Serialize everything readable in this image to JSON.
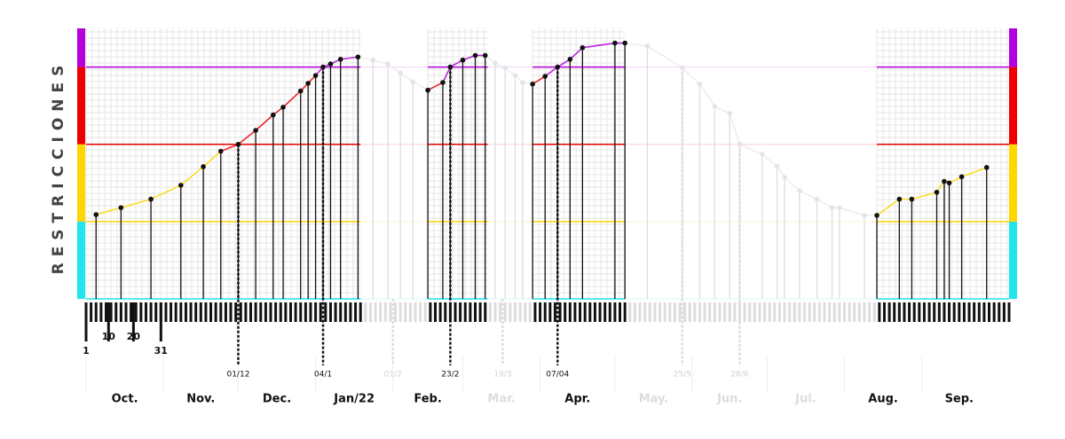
{
  "chart_data": {
    "type": "line",
    "ylabel": "RESTRICCIONES",
    "xlim": [
      0,
      370
    ],
    "ylim": [
      0,
      3.5
    ],
    "bands": [
      {
        "from": 0,
        "to": 1,
        "color": "#22e4ee"
      },
      {
        "from": 1,
        "to": 2,
        "color": "#ffd600"
      },
      {
        "from": 2,
        "to": 3,
        "color": "#ee0000"
      },
      {
        "from": 3,
        "to": 3.5,
        "color": "#b400dc"
      }
    ],
    "active_ranges": [
      [
        0,
        110
      ],
      [
        137,
        161
      ],
      [
        179,
        216
      ],
      [
        317,
        370
      ]
    ],
    "series": [
      {
        "x": [
          4,
          14,
          26,
          38,
          47,
          54,
          61,
          68,
          75,
          79,
          86,
          89,
          92,
          95,
          98,
          102,
          109,
          115,
          121,
          126,
          131,
          137,
          143,
          146,
          151,
          156,
          160,
          164,
          168,
          172,
          175,
          179,
          184,
          189,
          194,
          199,
          212,
          216,
          225,
          239,
          246,
          252,
          258,
          262,
          271,
          277,
          280,
          286,
          293,
          299,
          302,
          312,
          317,
          326,
          331,
          341,
          344,
          346,
          351,
          361
        ],
        "values": [
          1.09,
          1.18,
          1.29,
          1.47,
          1.71,
          1.91,
          2.0,
          2.18,
          2.38,
          2.48,
          2.69,
          2.79,
          2.89,
          3.0,
          3.04,
          3.1,
          3.13,
          3.09,
          3.04,
          2.92,
          2.81,
          2.7,
          2.8,
          3.0,
          3.09,
          3.15,
          3.15,
          3.05,
          2.99,
          2.89,
          2.8,
          2.78,
          2.88,
          3.0,
          3.1,
          3.25,
          3.31,
          3.31,
          3.27,
          2.99,
          2.78,
          2.49,
          2.4,
          2.0,
          1.87,
          1.72,
          1.57,
          1.4,
          1.29,
          1.18,
          1.18,
          1.08,
          1.08,
          1.29,
          1.29,
          1.38,
          1.52,
          1.5,
          1.58,
          1.7
        ]
      }
    ],
    "xticks": [
      {
        "value": 0,
        "label": "1"
      },
      {
        "value": 9,
        "label": "10"
      },
      {
        "value": 19,
        "label": "20"
      },
      {
        "value": 30,
        "label": "31"
      }
    ],
    "marked_dates": [
      {
        "x": 61,
        "label": "01/12"
      },
      {
        "x": 95,
        "label": "04/1"
      },
      {
        "x": 123,
        "label": "01/2"
      },
      {
        "x": 146,
        "label": "23/2"
      },
      {
        "x": 167,
        "label": "19/3"
      },
      {
        "x": 189,
        "label": "07/04"
      },
      {
        "x": 239,
        "label": "25/5"
      },
      {
        "x": 262,
        "label": "28/6"
      }
    ],
    "months": [
      {
        "start": 0,
        "label": "Oct."
      },
      {
        "start": 31,
        "label": "Nov."
      },
      {
        "start": 61,
        "label": "Dec."
      },
      {
        "start": 92,
        "label": "Jan/22"
      },
      {
        "start": 123,
        "label": "Feb."
      },
      {
        "start": 151,
        "label": "Mar."
      },
      {
        "start": 182,
        "label": "Apr."
      },
      {
        "start": 212,
        "label": "May."
      },
      {
        "start": 243,
        "label": "Jun."
      },
      {
        "start": 273,
        "label": "Jul."
      },
      {
        "start": 304,
        "label": "Aug."
      },
      {
        "start": 335,
        "label": "Sep."
      }
    ]
  }
}
